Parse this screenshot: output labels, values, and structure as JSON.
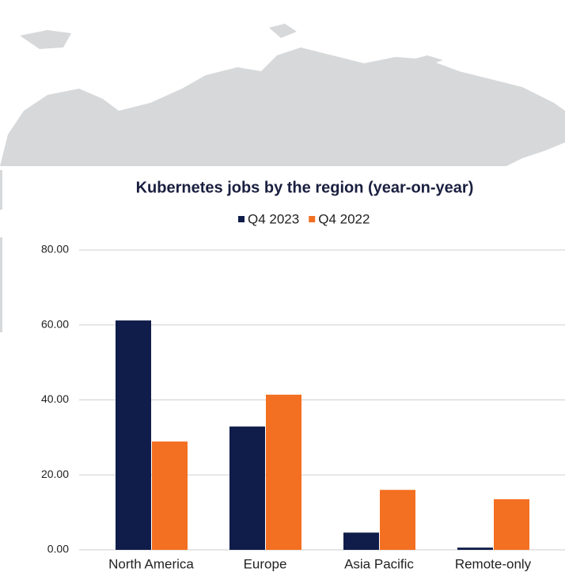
{
  "chart_data": {
    "type": "bar",
    "title": "Kubernetes jobs by the region (year-on-year)",
    "categories": [
      "North America",
      "Europe",
      "Asia Pacific",
      "Remote-only"
    ],
    "series": [
      {
        "name": "Q4 2023",
        "color": "#101d4a",
        "values": [
          61.2,
          32.9,
          4.6,
          0.6
        ]
      },
      {
        "name": "Q4 2022",
        "color": "#f36f21",
        "values": [
          28.9,
          41.4,
          16.0,
          13.5
        ]
      }
    ],
    "ylim": [
      0,
      80
    ],
    "yticks": [
      {
        "value": 0,
        "label": "0.00"
      },
      {
        "value": 20,
        "label": "20.00"
      },
      {
        "value": 40,
        "label": "40.00"
      },
      {
        "value": 60,
        "label": "60.00"
      },
      {
        "value": 80,
        "label": "80.00"
      }
    ],
    "grid": true,
    "legend": "top"
  }
}
